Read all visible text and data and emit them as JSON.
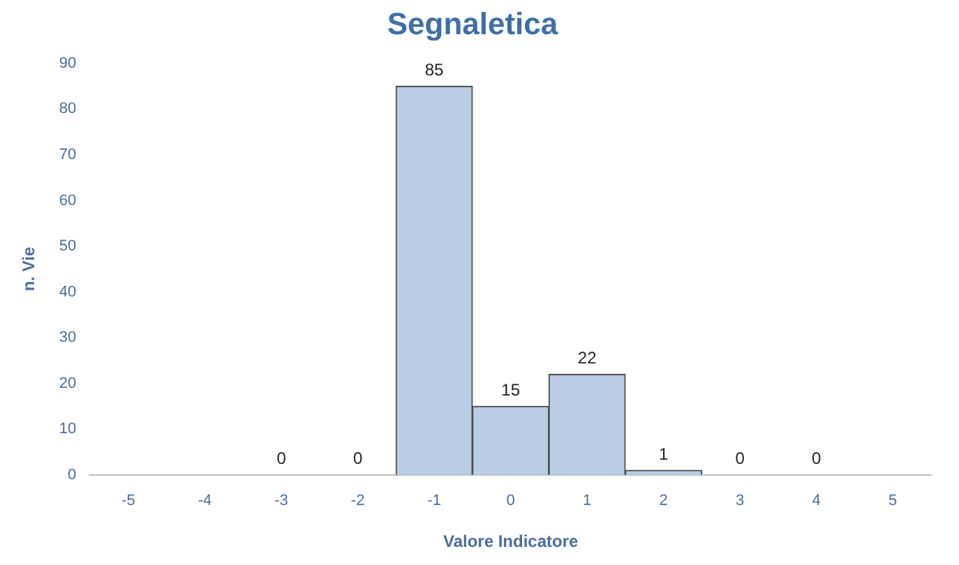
{
  "chart_data": {
    "type": "bar",
    "title": "Segnaletica",
    "xlabel": "Valore Indicatore",
    "ylabel": "n. Vie",
    "categories": [
      "-5",
      "-4",
      "-3",
      "-2",
      "-1",
      "0",
      "1",
      "2",
      "3",
      "4",
      "5"
    ],
    "values": [
      null,
      null,
      0,
      0,
      85,
      15,
      22,
      1,
      0,
      0,
      null
    ],
    "color": "#b9cde5",
    "ylim": [
      0,
      90
    ],
    "yticks": [
      0,
      10,
      20,
      30,
      40,
      50,
      60,
      70,
      80,
      90
    ],
    "grid": false,
    "legend": false,
    "data_labels": true
  }
}
